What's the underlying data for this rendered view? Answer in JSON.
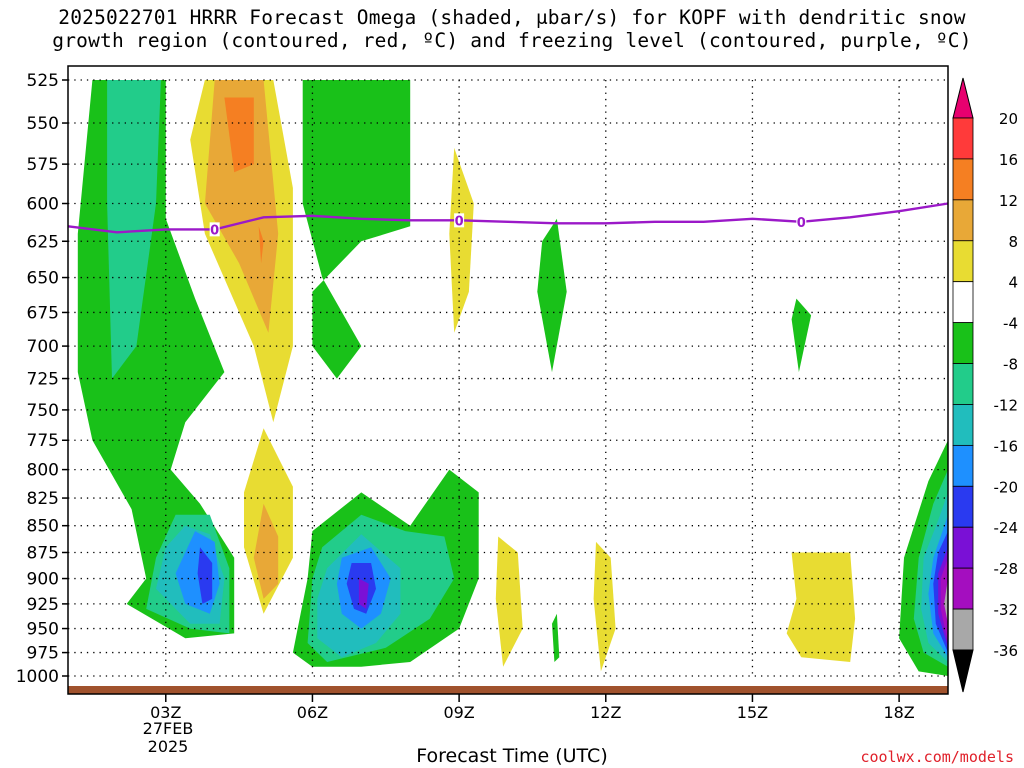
{
  "title_line1": "2025022701 HRRR Forecast Omega (shaded, μbar/s) for KOPF with dendritic snow",
  "title_line2": "growth region (contoured, red, ºC) and freezing level (contoured, purple, ºC)",
  "x_axis_title": "Forecast Time (UTC)",
  "credit": "coolwx.com/models",
  "x_date_line1": "27FEB",
  "x_date_line2": "2025",
  "freezing_label": "0",
  "chart_data": {
    "type": "heatmap",
    "title": "2025022701 HRRR Forecast Omega for KOPF",
    "x_unit": "forecast hour UTC",
    "y_unit": "hPa",
    "x_range": [
      1,
      19
    ],
    "y_range": [
      1000,
      525
    ],
    "y_scale": "log-pressure (inverted)",
    "grid": "dotted",
    "y_ticks": [
      525,
      550,
      575,
      600,
      625,
      650,
      675,
      700,
      725,
      750,
      775,
      800,
      825,
      850,
      875,
      900,
      925,
      950,
      975,
      1000
    ],
    "x_ticks": [
      {
        "hour": 3,
        "label": "03Z"
      },
      {
        "hour": 6,
        "label": "06Z"
      },
      {
        "hour": 9,
        "label": "09Z"
      },
      {
        "hour": 12,
        "label": "12Z"
      },
      {
        "hour": 15,
        "label": "15Z"
      },
      {
        "hour": 18,
        "label": "18Z"
      }
    ],
    "colorbar": {
      "unit": "μbar/s",
      "levels": [
        20,
        16,
        12,
        8,
        4,
        -4,
        -8,
        -12,
        -16,
        -20,
        -24,
        -28,
        -32,
        -36
      ],
      "colors": [
        "#e8006f",
        "#ff3a3a",
        "#f57f22",
        "#e8a837",
        "#e8dc32",
        "#ffffff",
        "#19c119",
        "#22cc8a",
        "#21bdbd",
        "#1e90ff",
        "#2a3af0",
        "#7a10d6",
        "#a40ebf",
        "#a8a8a8",
        "#000000"
      ]
    },
    "freezing_level": {
      "color": "#9b19c8",
      "points": [
        [
          1,
          615
        ],
        [
          2,
          619
        ],
        [
          3,
          617
        ],
        [
          4,
          617
        ],
        [
          5,
          609
        ],
        [
          6,
          608
        ],
        [
          7,
          610
        ],
        [
          8,
          611
        ],
        [
          9,
          611
        ],
        [
          10,
          612
        ],
        [
          11,
          613
        ],
        [
          12,
          613
        ],
        [
          13,
          612
        ],
        [
          14,
          612
        ],
        [
          15,
          610
        ],
        [
          16,
          612
        ],
        [
          17,
          609
        ],
        [
          18,
          605
        ],
        [
          19,
          600
        ]
      ],
      "label_hours": [
        4,
        9,
        16
      ]
    },
    "surface_color": "#a0522d",
    "regions": [
      {
        "level": -4,
        "color": "#19c119",
        "points": [
          [
            1.5,
            525
          ],
          [
            3,
            525
          ],
          [
            3,
            610
          ],
          [
            3.6,
            665
          ],
          [
            4.2,
            720
          ],
          [
            3.4,
            760
          ],
          [
            3.1,
            800
          ],
          [
            3.7,
            830
          ],
          [
            4.4,
            880
          ],
          [
            4.4,
            955
          ],
          [
            3.4,
            960
          ],
          [
            2.2,
            925
          ],
          [
            2.6,
            900
          ],
          [
            2.3,
            835
          ],
          [
            1.5,
            775
          ],
          [
            1.2,
            720
          ],
          [
            1.2,
            620
          ]
        ]
      },
      {
        "level": -8,
        "color": "#22cc8a",
        "points": [
          [
            1.8,
            525
          ],
          [
            2.9,
            525
          ],
          [
            2.8,
            600
          ],
          [
            2.4,
            700
          ],
          [
            1.9,
            725
          ],
          [
            1.8,
            600
          ]
        ]
      },
      {
        "level": 4,
        "color": "#e8dc32",
        "points": [
          [
            3.8,
            525
          ],
          [
            5.2,
            525
          ],
          [
            5.6,
            590
          ],
          [
            5.6,
            700
          ],
          [
            5.2,
            760
          ],
          [
            4.8,
            700
          ],
          [
            3.8,
            620
          ],
          [
            3.5,
            560
          ]
        ]
      },
      {
        "level": 8,
        "color": "#e8a837",
        "points": [
          [
            4.0,
            525
          ],
          [
            5.0,
            525
          ],
          [
            5.3,
            620
          ],
          [
            5.1,
            690
          ],
          [
            4.5,
            640
          ],
          [
            3.8,
            600
          ]
        ]
      },
      {
        "level": 12,
        "color": "#f57f22",
        "points": [
          [
            4.2,
            535
          ],
          [
            4.8,
            535
          ],
          [
            4.8,
            575
          ],
          [
            4.4,
            580
          ]
        ]
      },
      {
        "level": 12,
        "color": "#f57f22",
        "points": [
          [
            4.9,
            615
          ],
          [
            5.0,
            625
          ],
          [
            4.95,
            640
          ]
        ]
      },
      {
        "level": -4,
        "color": "#19c119",
        "points": [
          [
            5.8,
            525
          ],
          [
            8,
            525
          ],
          [
            8,
            615
          ],
          [
            7,
            625
          ],
          [
            6,
            660
          ],
          [
            6,
            700
          ],
          [
            6.5,
            725
          ],
          [
            7,
            700
          ],
          [
            6.2,
            650
          ],
          [
            5.8,
            600
          ]
        ]
      },
      {
        "level": 4,
        "color": "#e8dc32",
        "points": [
          [
            8.9,
            565
          ],
          [
            9.3,
            600
          ],
          [
            9.2,
            660
          ],
          [
            8.9,
            690
          ],
          [
            8.8,
            620
          ]
        ]
      },
      {
        "level": -4,
        "color": "#19c119",
        "points": [
          [
            10.7,
            625
          ],
          [
            11,
            610
          ],
          [
            11.2,
            660
          ],
          [
            10.9,
            720
          ],
          [
            10.6,
            660
          ]
        ]
      },
      {
        "level": -4,
        "color": "#19c119",
        "points": [
          [
            15.9,
            665
          ],
          [
            16.2,
            677
          ],
          [
            15.95,
            720
          ],
          [
            15.8,
            680
          ]
        ]
      },
      {
        "level": 4,
        "color": "#e8dc32",
        "points": [
          [
            5.0,
            765
          ],
          [
            5.6,
            815
          ],
          [
            5.6,
            880
          ],
          [
            5.0,
            935
          ],
          [
            4.6,
            870
          ],
          [
            4.6,
            820
          ]
        ]
      },
      {
        "level": 8,
        "color": "#e8a837",
        "points": [
          [
            5.0,
            830
          ],
          [
            5.3,
            860
          ],
          [
            5.3,
            905
          ],
          [
            5.0,
            920
          ],
          [
            4.8,
            880
          ]
        ]
      },
      {
        "level": -8,
        "color": "#22cc8a",
        "points": [
          [
            3.2,
            840
          ],
          [
            3.9,
            840
          ],
          [
            4.3,
            890
          ],
          [
            4.3,
            955
          ],
          [
            3.5,
            950
          ],
          [
            2.6,
            930
          ],
          [
            2.8,
            880
          ]
        ]
      },
      {
        "level": -12,
        "color": "#21bdbd",
        "points": [
          [
            3.4,
            850
          ],
          [
            3.9,
            858
          ],
          [
            4.2,
            900
          ],
          [
            4.1,
            945
          ],
          [
            3.5,
            945
          ],
          [
            2.8,
            910
          ],
          [
            3.0,
            870
          ]
        ]
      },
      {
        "level": -16,
        "color": "#1e90ff",
        "points": [
          [
            3.6,
            855
          ],
          [
            4.0,
            865
          ],
          [
            4.1,
            905
          ],
          [
            3.9,
            935
          ],
          [
            3.4,
            925
          ],
          [
            3.2,
            895
          ]
        ]
      },
      {
        "level": -20,
        "color": "#2a3af0",
        "points": [
          [
            3.7,
            870
          ],
          [
            3.95,
            885
          ],
          [
            3.95,
            920
          ],
          [
            3.75,
            925
          ],
          [
            3.65,
            895
          ]
        ]
      },
      {
        "level": -4,
        "color": "#19c119",
        "points": [
          [
            6,
            855
          ],
          [
            7,
            820
          ],
          [
            8,
            850
          ],
          [
            8.8,
            800
          ],
          [
            9.4,
            820
          ],
          [
            9.4,
            900
          ],
          [
            9,
            950
          ],
          [
            8,
            985
          ],
          [
            7,
            990
          ],
          [
            6,
            990
          ],
          [
            5.6,
            975
          ],
          [
            5.9,
            900
          ]
        ]
      },
      {
        "level": -8,
        "color": "#22cc8a",
        "points": [
          [
            6.2,
            870
          ],
          [
            7,
            840
          ],
          [
            7.9,
            855
          ],
          [
            8.7,
            860
          ],
          [
            8.9,
            900
          ],
          [
            8.4,
            940
          ],
          [
            7.5,
            970
          ],
          [
            6.3,
            985
          ],
          [
            5.9,
            965
          ],
          [
            6.0,
            900
          ]
        ]
      },
      {
        "level": -12,
        "color": "#21bdbd",
        "points": [
          [
            6.3,
            890
          ],
          [
            7,
            858
          ],
          [
            7.8,
            890
          ],
          [
            7.8,
            935
          ],
          [
            7.3,
            965
          ],
          [
            6.6,
            980
          ],
          [
            6.1,
            960
          ],
          [
            6.1,
            920
          ]
        ]
      },
      {
        "level": -16,
        "color": "#1e90ff",
        "points": [
          [
            6.6,
            880
          ],
          [
            7.2,
            870
          ],
          [
            7.6,
            900
          ],
          [
            7.4,
            935
          ],
          [
            7.0,
            950
          ],
          [
            6.6,
            935
          ],
          [
            6.5,
            905
          ]
        ]
      },
      {
        "level": -20,
        "color": "#2a3af0",
        "points": [
          [
            6.8,
            885
          ],
          [
            7.2,
            885
          ],
          [
            7.3,
            910
          ],
          [
            7.1,
            935
          ],
          [
            6.85,
            930
          ],
          [
            6.7,
            905
          ]
        ]
      },
      {
        "level": -24,
        "color": "#7a10d6",
        "points": [
          [
            6.95,
            900
          ],
          [
            7.15,
            905
          ],
          [
            7.1,
            930
          ],
          [
            6.95,
            925
          ]
        ]
      },
      {
        "level": 4,
        "color": "#e8dc32",
        "points": [
          [
            9.8,
            860
          ],
          [
            10.2,
            875
          ],
          [
            10.3,
            950
          ],
          [
            9.9,
            990
          ],
          [
            9.75,
            920
          ]
        ]
      },
      {
        "level": -4,
        "color": "#19c119",
        "points": [
          [
            10.9,
            945
          ],
          [
            11.0,
            935
          ],
          [
            11.05,
            980
          ],
          [
            10.95,
            985
          ]
        ]
      },
      {
        "level": 4,
        "color": "#e8dc32",
        "points": [
          [
            11.8,
            865
          ],
          [
            12.1,
            880
          ],
          [
            12.2,
            950
          ],
          [
            11.9,
            995
          ],
          [
            11.75,
            920
          ]
        ]
      },
      {
        "level": 4,
        "color": "#e8dc32",
        "points": [
          [
            15.8,
            875
          ],
          [
            17.0,
            875
          ],
          [
            17.1,
            940
          ],
          [
            17.0,
            985
          ],
          [
            16,
            980
          ],
          [
            15.7,
            955
          ],
          [
            15.9,
            920
          ]
        ]
      },
      {
        "level": -4,
        "color": "#19c119",
        "points": [
          [
            19,
            775
          ],
          [
            19,
            1000
          ],
          [
            18.4,
            995
          ],
          [
            18.0,
            960
          ],
          [
            18.1,
            880
          ],
          [
            18.6,
            810
          ]
        ]
      },
      {
        "level": -8,
        "color": "#22cc8a",
        "points": [
          [
            19,
            800
          ],
          [
            19,
            990
          ],
          [
            18.5,
            975
          ],
          [
            18.3,
            940
          ],
          [
            18.4,
            880
          ],
          [
            18.7,
            830
          ]
        ]
      },
      {
        "level": -12,
        "color": "#21bdbd",
        "points": [
          [
            19,
            820
          ],
          [
            19,
            985
          ],
          [
            18.6,
            965
          ],
          [
            18.45,
            930
          ],
          [
            18.5,
            880
          ],
          [
            18.8,
            845
          ]
        ]
      },
      {
        "level": -16,
        "color": "#1e90ff",
        "points": [
          [
            19,
            840
          ],
          [
            19,
            980
          ],
          [
            18.7,
            955
          ],
          [
            18.6,
            915
          ],
          [
            18.7,
            880
          ],
          [
            18.85,
            860
          ]
        ]
      },
      {
        "level": -20,
        "color": "#2a3af0",
        "points": [
          [
            19,
            855
          ],
          [
            19,
            975
          ],
          [
            18.75,
            945
          ],
          [
            18.7,
            905
          ],
          [
            18.8,
            875
          ]
        ]
      },
      {
        "level": -24,
        "color": "#7a10d6",
        "points": [
          [
            19,
            870
          ],
          [
            19,
            970
          ],
          [
            18.8,
            935
          ],
          [
            18.8,
            895
          ]
        ]
      },
      {
        "level": -28,
        "color": "#a40ebf",
        "points": [
          [
            19,
            880
          ],
          [
            19,
            965
          ],
          [
            18.85,
            930
          ],
          [
            18.85,
            900
          ]
        ]
      },
      {
        "level": -32,
        "color": "#a8a8a8",
        "points": [
          [
            19,
            900
          ],
          [
            19,
            945
          ],
          [
            18.92,
            925
          ]
        ]
      }
    ]
  }
}
